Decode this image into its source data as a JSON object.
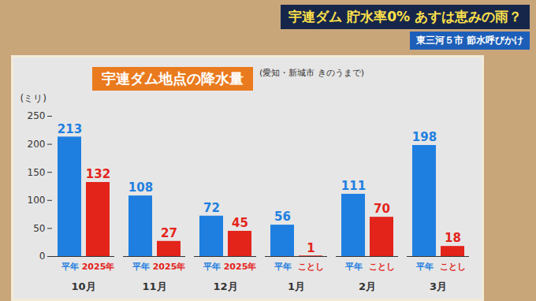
{
  "chart_data": {
    "type": "bar",
    "title": "宇連ダム地点の降水量",
    "subtitle": "(愛知・新城市 きのうまで)",
    "y_label": "(ミリ)",
    "annotations": [
      "宇連ダム 貯水率0% あすは恵みの雨？",
      "東三河５市 節水呼びかけ"
    ],
    "categories": [
      "10月",
      "11月",
      "12月",
      "1月",
      "2月",
      "3月"
    ],
    "series": [
      {
        "color": "#1f7fe0",
        "bar_labels": [
          "平年",
          "平年",
          "平年",
          "平年",
          "平年",
          "平年"
        ],
        "values": [
          213,
          108,
          72,
          56,
          111,
          198
        ]
      },
      {
        "color": "#e3241b",
        "bar_labels": [
          "2025年",
          "2025年",
          "2025年",
          "ことし",
          "ことし",
          "ことし"
        ],
        "values": [
          132,
          27,
          45,
          1,
          70,
          18
        ]
      }
    ],
    "ylim": [
      0,
      250
    ],
    "yticks": [
      0,
      50,
      100,
      150,
      200,
      250
    ],
    "grid": false,
    "data_labels": true
  }
}
